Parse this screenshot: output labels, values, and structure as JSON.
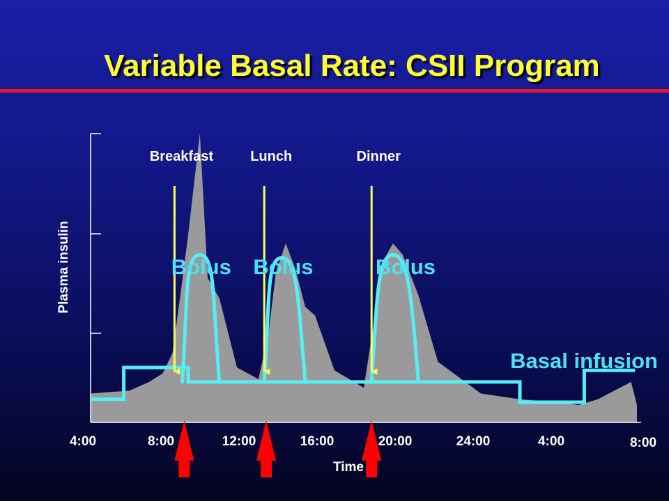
{
  "slide": {
    "title": "Variable Basal Rate: CSII Program"
  },
  "colors": {
    "title": "#ffff33",
    "title_rule": "#e2192a",
    "insulin_area": "#9a9a9a",
    "program_line": "#55eef5",
    "meal_arrow": "#ffff55",
    "bolus_arrow": "#ff0000",
    "text": "#ffffff"
  },
  "chart_data": {
    "type": "area",
    "title": "Variable Basal Rate: CSII Program",
    "xlabel": "Time",
    "ylabel": "Plasma insulin",
    "x_tick_labels": [
      "4:00",
      "8:00",
      "12:00",
      "16:00",
      "20:00",
      "24:00",
      "4:00",
      "8:00"
    ],
    "x_tick_hours": [
      4,
      8,
      12,
      16,
      20,
      24,
      28,
      32
    ],
    "xlim": [
      4,
      32
    ],
    "ylim": [
      0,
      100
    ],
    "y_tick_labels_shown": false,
    "grid": false,
    "meals": [
      {
        "label": "Breakfast",
        "hour": 8.3
      },
      {
        "label": "Lunch",
        "hour": 12.9
      },
      {
        "label": "Dinner",
        "hour": 18.4
      }
    ],
    "bolus_arrows_hours": [
      8.8,
      13.0,
      18.4
    ],
    "bolus_curves": [
      {
        "label": "Bolus",
        "start_hour": 8.7,
        "peak_hour": 9.6,
        "end_hour": 10.6,
        "peak": 58
      },
      {
        "label": "Bolus",
        "start_hour": 12.9,
        "peak_hour": 13.8,
        "end_hour": 15.0,
        "peak": 57
      },
      {
        "label": "Bolus",
        "start_hour": 18.4,
        "peak_hour": 19.5,
        "end_hour": 20.8,
        "peak": 58
      }
    ],
    "annotations": [
      "Bolus",
      "Bolus",
      "Bolus",
      "Basal infusion"
    ],
    "series": [
      {
        "name": "Plasma insulin",
        "x": [
          4,
          6,
          7,
          7.7,
          8.2,
          8.6,
          9.0,
          9.6,
          10.0,
          10.6,
          11.5,
          12.6,
          13.1,
          13.5,
          14.0,
          14.5,
          15.0,
          15.5,
          16.5,
          18.0,
          18.6,
          19.0,
          19.5,
          20.0,
          20.8,
          21.8,
          23.0,
          24.0,
          26.0,
          28.0,
          29.0,
          30.0,
          31.7,
          32.0
        ],
        "y": [
          10,
          11,
          14,
          17,
          24,
          44,
          65,
          100,
          50,
          43,
          19,
          15,
          30,
          52,
          62,
          53,
          40,
          37,
          18,
          12,
          38,
          56,
          62,
          58,
          44,
          21,
          15,
          10,
          8,
          7,
          6,
          8,
          14,
          6
        ]
      },
      {
        "name": "Basal infusion",
        "x": [
          4,
          5.7,
          5.7,
          9.0,
          9.0,
          26.0,
          26.0,
          29.3,
          29.3,
          31.9
        ],
        "y": [
          8,
          8,
          19,
          19,
          14,
          14,
          7,
          7,
          18,
          18
        ]
      }
    ]
  }
}
